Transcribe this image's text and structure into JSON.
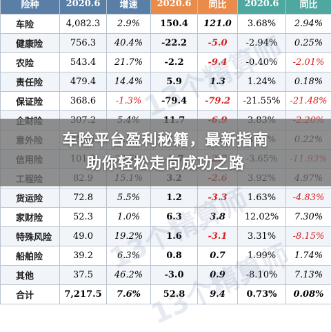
{
  "table": {
    "headers": [
      {
        "label": "险种",
        "color": "blue"
      },
      {
        "label": "2020.6",
        "color": "blue"
      },
      {
        "label": "增速",
        "color": "blue"
      },
      {
        "label": "2020.6",
        "color": "orange"
      },
      {
        "label": "同比",
        "color": "orange"
      },
      {
        "label": "2020.6",
        "color": "teal"
      },
      {
        "label": "同比",
        "color": "teal"
      }
    ],
    "rows": [
      {
        "name": "车险",
        "v1": "4,082.3",
        "v2": "2.9%",
        "v3": "150.4",
        "v4": "121.0",
        "v5": "3.68%",
        "v6": "2.94%"
      },
      {
        "name": "健康险",
        "v1": "756.3",
        "v2": "40.4%",
        "v3": "-22.2",
        "v4": "-5.0",
        "v5": "-2.94%",
        "v6": "0.25%"
      },
      {
        "name": "农险",
        "v1": "543.4",
        "v2": "21.7%",
        "v3": "-2.2",
        "v4": "-9.4",
        "v5": "-0.40%",
        "v6": "-2.01%"
      },
      {
        "name": "责任险",
        "v1": "479.4",
        "v2": "14.4%",
        "v3": "5.9",
        "v4": "1.3",
        "v5": "1.24%",
        "v6": "0.18%"
      },
      {
        "name": "保证险",
        "v1": "368.6",
        "v2": "-1.3%",
        "v3": "-79.4",
        "v4": "-79.2",
        "v5": "-21.55%",
        "v6": "-21.48%"
      },
      {
        "name": "企财险",
        "v1": "307.2",
        "v2": "5.4%",
        "v3": "11.7",
        "v4": "-6.9",
        "v5": "3.83%",
        "v6": "-2.20%"
      },
      {
        "name": "意外险",
        "v1": "258.1",
        "v2": "9.8%",
        "v3": "9.2",
        "v4": "1.4",
        "v5": "3.56%",
        "v6": "0.22%"
      },
      {
        "name": "信用险",
        "v1": "101.3",
        "v2": "23.5%",
        "v3": "-3.7",
        "v4": "-2.7",
        "v5": "-3.65%",
        "v6": "-11.93%"
      },
      {
        "name": "工程险",
        "v1": "82.9",
        "v2": "15.1%",
        "v3": "3.2",
        "v4": "-2.6",
        "v5": "3.92%",
        "v6": "4.97%"
      },
      {
        "name": "货运险",
        "v1": "72.8",
        "v2": "5.5%",
        "v3": "1.2",
        "v4": "-3.3",
        "v5": "1.63%",
        "v6": "-4.83%"
      },
      {
        "name": "家财险",
        "v1": "52.3",
        "v2": "1.0%",
        "v3": "6.3",
        "v4": "3.8",
        "v5": "12.02%",
        "v6": "7.30%"
      },
      {
        "name": "特殊风险",
        "v1": "49.0",
        "v2": "19.2%",
        "v3": "1.6",
        "v4": "-3.1",
        "v5": "3.31%",
        "v6": "-8.15%"
      },
      {
        "name": "船舶险",
        "v1": "39.2",
        "v2": "6.3%",
        "v3": "0.8",
        "v4": "0.7",
        "v5": "1.99%",
        "v6": "1.74%"
      },
      {
        "name": "其他",
        "v1": "37.5",
        "v2": "46.2%",
        "v3": "-3.0",
        "v4": "0.9",
        "v5": "-8.10%",
        "v6": "7.13%"
      },
      {
        "name": "合计",
        "v1": "7,217.5",
        "v2": "7.6%",
        "v3": "52.8",
        "v4": "9.4",
        "v5": "0.73%",
        "v6": "0.08%"
      }
    ]
  },
  "banner": {
    "line1": "车险平台盈利秘籍，最新指南",
    "line2": "助你轻松走向成功之路"
  },
  "watermark": "13个精算师",
  "colors": {
    "blue": "#5a7fa7",
    "orange": "#e98b4a",
    "teal": "#4fa8a0",
    "negative": "#d91e1e"
  }
}
